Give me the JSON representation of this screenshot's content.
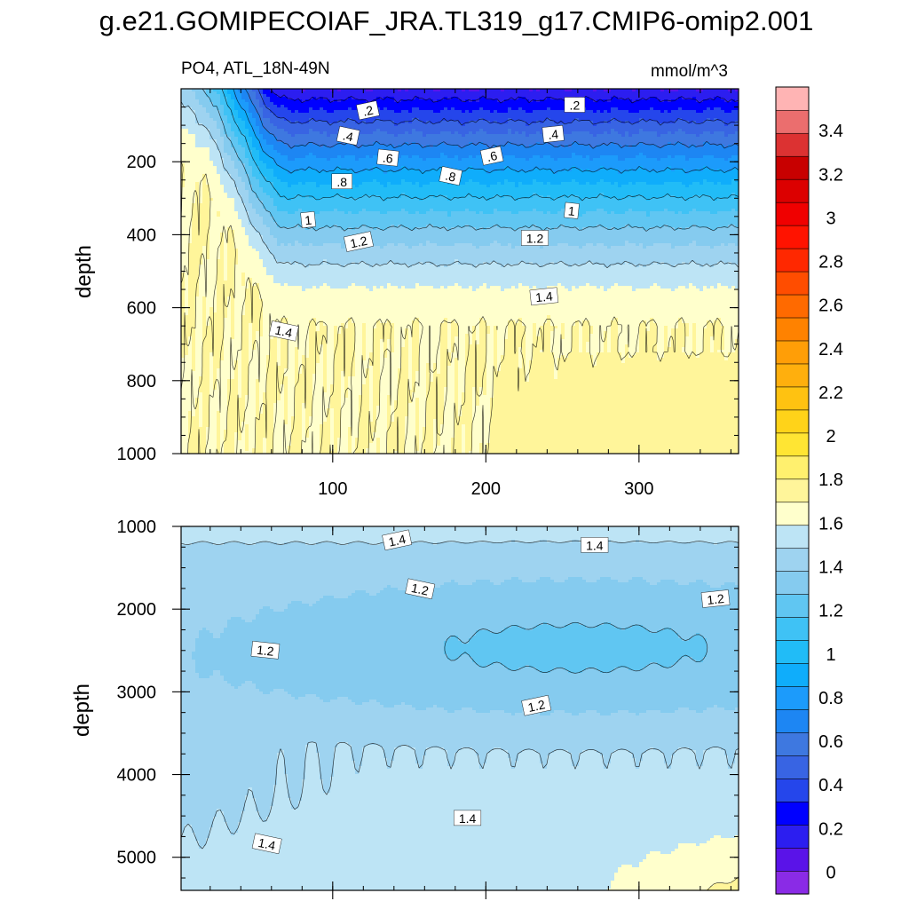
{
  "figure": {
    "title": "g.e21.GOMIPECOIAF_JRA.TL319_g17.CMIP6-omip2.001",
    "left_label": "PO4, ATL_18N-49N",
    "right_label": "mmol/m^3"
  },
  "colors": {
    "levels": [
      "#8a2be6",
      "#5a13e8",
      "#2c1ef0",
      "#0000ff",
      "#2546eb",
      "#3864e3",
      "#3e78e0",
      "#1d86f3",
      "#1c9bfb",
      "#0fadfb",
      "#21bcf7",
      "#3fc2f5",
      "#60c6f2",
      "#85cbef",
      "#9ed3f0",
      "#bde4f5",
      "#ffffcc",
      "#fff59a",
      "#fff06e",
      "#ffe533",
      "#ffd319",
      "#ffc211",
      "#ffaf0d",
      "#ff9e07",
      "#ff8200",
      "#ff6a00",
      "#ff4d00",
      "#ff2800",
      "#ff1300",
      "#f00000",
      "#dc0000",
      "#c80000",
      "#dc3232",
      "#eb6e6e",
      "#ffb4b4"
    ]
  },
  "chart_data": [
    {
      "type": "heatmap",
      "subtype": "contour",
      "panel": "upper",
      "xlabel": "",
      "ylabel": "depth",
      "xlim": [
        1,
        365
      ],
      "ylim": [
        1000,
        0
      ],
      "xticks": [
        100,
        200,
        300
      ],
      "yticks": [
        200,
        400,
        600,
        800,
        1000
      ],
      "contour_levels": [
        0.2,
        0.4,
        0.6,
        0.8,
        1.0,
        1.2,
        1.4,
        1.6
      ],
      "contour_labels": [
        {
          "text": ".2",
          "x": 123,
          "depth": 60
        },
        {
          "text": ".2",
          "x": 258,
          "depth": 45
        },
        {
          "text": ".4",
          "x": 110,
          "depth": 130
        },
        {
          "text": ".4",
          "x": 244,
          "depth": 125
        },
        {
          "text": ".6",
          "x": 136,
          "depth": 190
        },
        {
          "text": ".6",
          "x": 204,
          "depth": 185
        },
        {
          "text": ".8",
          "x": 106,
          "depth": 255
        },
        {
          "text": ".8",
          "x": 177,
          "depth": 240
        },
        {
          "text": "1",
          "x": 84,
          "depth": 360
        },
        {
          "text": "1",
          "x": 256,
          "depth": 335
        },
        {
          "text": "1.2",
          "x": 117,
          "depth": 420
        },
        {
          "text": "1.2",
          "x": 232,
          "depth": 410
        },
        {
          "text": "1.4",
          "x": 68,
          "depth": 665
        },
        {
          "text": "1.4",
          "x": 238,
          "depth": 570
        }
      ]
    },
    {
      "type": "heatmap",
      "subtype": "contour",
      "panel": "lower",
      "xlabel": "",
      "ylabel": "depth",
      "xlim": [
        1,
        365
      ],
      "ylim": [
        5400,
        1000
      ],
      "yticks": [
        1000,
        2000,
        3000,
        4000,
        5000
      ],
      "contour_levels": [
        1.2,
        1.4,
        1.6
      ],
      "contour_labels": [
        {
          "text": "1.4",
          "x": 142,
          "depth": 1170
        },
        {
          "text": "1.4",
          "x": 271,
          "depth": 1230
        },
        {
          "text": "1.2",
          "x": 157,
          "depth": 1760
        },
        {
          "text": "1.2",
          "x": 350,
          "depth": 1880
        },
        {
          "text": "1.2",
          "x": 56,
          "depth": 2500
        },
        {
          "text": "1.2",
          "x": 233,
          "depth": 3170
        },
        {
          "text": "1.4",
          "x": 188,
          "depth": 4530
        },
        {
          "text": "1.4",
          "x": 57,
          "depth": 4840
        }
      ]
    },
    {
      "type": "colorbar",
      "tick_labels": [
        "0",
        "0.2",
        "0.4",
        "0.6",
        "0.8",
        "1",
        "1.2",
        "1.4",
        "1.6",
        "1.8",
        "2",
        "2.2",
        "2.4",
        "2.6",
        "2.8",
        "3",
        "3.2",
        "3.4"
      ],
      "tick_values": [
        0,
        0.2,
        0.4,
        0.6,
        0.8,
        1.0,
        1.2,
        1.4,
        1.6,
        1.8,
        2.0,
        2.2,
        2.4,
        2.6,
        2.8,
        3.0,
        3.2,
        3.4
      ],
      "range": [
        -0.1,
        3.6
      ],
      "level_step": 0.1
    }
  ]
}
